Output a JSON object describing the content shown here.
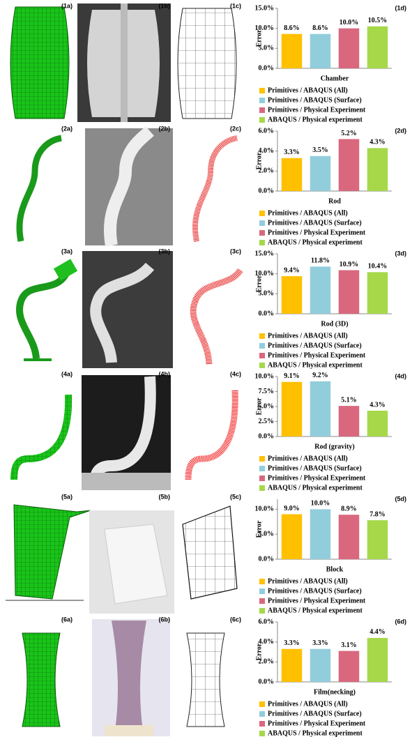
{
  "panels": [
    [
      "(1a)",
      "(1b)",
      "(1c)"
    ],
    [
      "(2a)",
      "(2b)",
      "(2c)"
    ],
    [
      "(3a)",
      "(3b)",
      "(3c)"
    ],
    [
      "(4a)",
      "(4b)",
      "(4c)"
    ],
    [
      "(5a)",
      "(5b)",
      "(5c)"
    ],
    [
      "(6a)",
      "(6b)",
      "(6c)"
    ]
  ],
  "chart_data": [
    {
      "type": "bar",
      "annotation": "(1d)",
      "xlabel": "Chamber",
      "ylabel": "Error",
      "categories": [
        null
      ],
      "ylim": [
        0,
        15
      ],
      "yticks": [
        {
          "value": 0,
          "label": "0.0%"
        },
        {
          "value": 5,
          "label": "5.0%"
        },
        {
          "value": 10,
          "label": "10.0%"
        },
        {
          "value": 15,
          "label": "15.0%"
        }
      ],
      "series": [
        {
          "name": "Primitives / ABAQUS  (All)",
          "color": "#ffc000",
          "values": [
            8.6
          ],
          "value_labels": [
            "8.6%"
          ]
        },
        {
          "name": "Primitives / ABAQUS (Surface)",
          "color": "#92cddc",
          "values": [
            8.6
          ],
          "value_labels": [
            "8.6%"
          ]
        },
        {
          "name": "Primitives / Physical Experiment",
          "color": "#d9687e",
          "values": [
            10.0
          ],
          "value_labels": [
            "10.0%"
          ]
        },
        {
          "name": "ABAQUS / Physical experiment",
          "color": "#a6d84a",
          "values": [
            10.5
          ],
          "value_labels": [
            "10.5%"
          ]
        }
      ]
    },
    {
      "type": "bar",
      "annotation": "(2d)",
      "xlabel": "Rod",
      "ylabel": "Error",
      "categories": [
        null
      ],
      "ylim": [
        0,
        6
      ],
      "yticks": [
        {
          "value": 0,
          "label": "0.0%"
        },
        {
          "value": 2,
          "label": "2.0%"
        },
        {
          "value": 4,
          "label": "4.0%"
        },
        {
          "value": 6,
          "label": "6.0%"
        }
      ],
      "series": [
        {
          "name": "Primitives / ABAQUS  (All)",
          "color": "#ffc000",
          "values": [
            3.3
          ],
          "value_labels": [
            "3.3%"
          ]
        },
        {
          "name": "Primitives / ABAQUS (Surface)",
          "color": "#92cddc",
          "values": [
            3.5
          ],
          "value_labels": [
            "3.5%"
          ]
        },
        {
          "name": "Primitives / Physical Experiment",
          "color": "#d9687e",
          "values": [
            5.2
          ],
          "value_labels": [
            "5.2%"
          ]
        },
        {
          "name": "ABAQUS / Physical experiment",
          "color": "#a6d84a",
          "values": [
            4.3
          ],
          "value_labels": [
            "4.3%"
          ]
        }
      ]
    },
    {
      "type": "bar",
      "annotation": "(3d)",
      "xlabel": "Rod (3D)",
      "ylabel": "Error",
      "categories": [
        null
      ],
      "ylim": [
        0,
        15
      ],
      "yticks": [
        {
          "value": 0,
          "label": "0.0%"
        },
        {
          "value": 5,
          "label": "5.0%"
        },
        {
          "value": 10,
          "label": "10.0%"
        },
        {
          "value": 15,
          "label": "15.0%"
        }
      ],
      "series": [
        {
          "name": "Primitives / ABAQUS  (All)",
          "color": "#ffc000",
          "values": [
            9.4
          ],
          "value_labels": [
            "9.4%"
          ]
        },
        {
          "name": "Primitives / ABAQUS (Surface)",
          "color": "#92cddc",
          "values": [
            11.8
          ],
          "value_labels": [
            "11.8%"
          ]
        },
        {
          "name": "Primitives / Physical Experiment",
          "color": "#d9687e",
          "values": [
            10.9
          ],
          "value_labels": [
            "10.9%"
          ]
        },
        {
          "name": "ABAQUS / Physical experiment",
          "color": "#a6d84a",
          "values": [
            10.4
          ],
          "value_labels": [
            "10.4%"
          ]
        }
      ]
    },
    {
      "type": "bar",
      "annotation": "(4d)",
      "xlabel": "Rod (gravity)",
      "ylabel": "Error",
      "categories": [
        null
      ],
      "ylim": [
        0,
        10
      ],
      "yticks": [
        {
          "value": 0,
          "label": "0.0%"
        },
        {
          "value": 2.5,
          "label": "2.5%"
        },
        {
          "value": 5,
          "label": "5.0%"
        },
        {
          "value": 7.5,
          "label": "7.5%"
        },
        {
          "value": 10,
          "label": "10.0%"
        }
      ],
      "series": [
        {
          "name": "Primitives / ABAQUS  (All)",
          "color": "#ffc000",
          "values": [
            9.1
          ],
          "value_labels": [
            "9.1%"
          ]
        },
        {
          "name": "Primitives / ABAQUS (Surface)",
          "color": "#92cddc",
          "values": [
            9.2
          ],
          "value_labels": [
            "9.2%"
          ]
        },
        {
          "name": "Primitives / Physical Experiment",
          "color": "#d9687e",
          "values": [
            5.1
          ],
          "value_labels": [
            "5.1%"
          ]
        },
        {
          "name": "ABAQUS / Physical experiment",
          "color": "#a6d84a",
          "values": [
            4.3
          ],
          "value_labels": [
            "4.3%"
          ]
        }
      ]
    },
    {
      "type": "bar",
      "annotation": "(5d)",
      "xlabel": "Block",
      "ylabel": "Error",
      "categories": [
        null
      ],
      "ylim": [
        0,
        12
      ],
      "yticks": [
        {
          "value": 0,
          "label": "0.0%"
        },
        {
          "value": 5,
          "label": "5.0%"
        },
        {
          "value": 10,
          "label": "10.0%"
        }
      ],
      "series": [
        {
          "name": "Primitives / ABAQUS  (All)",
          "color": "#ffc000",
          "values": [
            9.0
          ],
          "value_labels": [
            "9.0%"
          ]
        },
        {
          "name": "Primitives / ABAQUS (Surface)",
          "color": "#92cddc",
          "values": [
            10.0
          ],
          "value_labels": [
            "10.0%"
          ]
        },
        {
          "name": "Primitives / Physical Experiment",
          "color": "#d9687e",
          "values": [
            8.9
          ],
          "value_labels": [
            "8.9%"
          ]
        },
        {
          "name": "ABAQUS / Physical experiment",
          "color": "#a6d84a",
          "values": [
            7.8
          ],
          "value_labels": [
            "7.8%"
          ]
        }
      ]
    },
    {
      "type": "bar",
      "annotation": "(6d)",
      "xlabel": "Film(necking)",
      "ylabel": "Error",
      "categories": [
        null
      ],
      "ylim": [
        0,
        6
      ],
      "yticks": [
        {
          "value": 0,
          "label": "0.0%"
        },
        {
          "value": 2,
          "label": "2.0%"
        },
        {
          "value": 4,
          "label": "4.0%"
        },
        {
          "value": 6,
          "label": "6.0%"
        }
      ],
      "series": [
        {
          "name": "Primitives / ABAQUS  (All)",
          "color": "#ffc000",
          "values": [
            3.3
          ],
          "value_labels": [
            "3.3%"
          ]
        },
        {
          "name": "Primitives / ABAQUS (Surface)",
          "color": "#92cddc",
          "values": [
            3.3
          ],
          "value_labels": [
            "3.3%"
          ]
        },
        {
          "name": "Primitives / Physical Experiment",
          "color": "#d9687e",
          "values": [
            3.1
          ],
          "value_labels": [
            "3.1%"
          ]
        },
        {
          "name": "ABAQUS / Physical experiment",
          "color": "#a6d84a",
          "values": [
            4.4
          ],
          "value_labels": [
            "4.4%"
          ]
        }
      ]
    }
  ]
}
